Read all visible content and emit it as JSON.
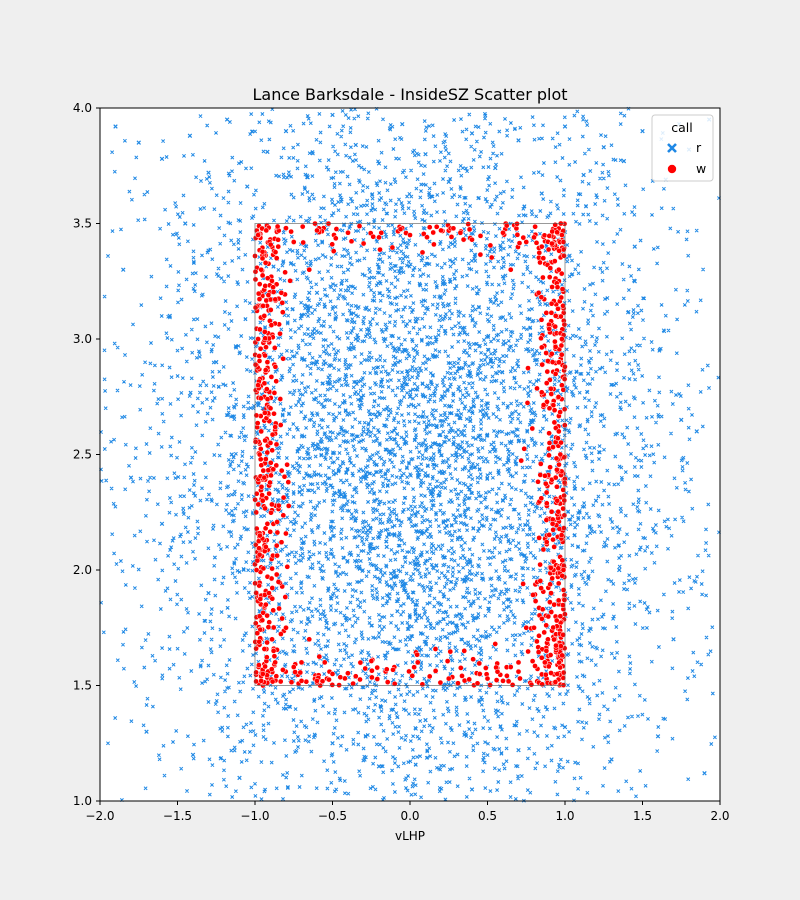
{
  "chart_data": {
    "type": "scatter",
    "title": "Lance Barksdale - InsideSZ Scatter plot",
    "xlabel": "vLHP",
    "ylabel": "",
    "xlim": [
      -2.0,
      2.0
    ],
    "ylim": [
      1.0,
      4.0
    ],
    "xticks": [
      "−2.0",
      "−1.5",
      "−1.0",
      "−0.5",
      "0.0",
      "0.5",
      "1.0",
      "1.5",
      "2.0"
    ],
    "yticks": [
      "1.0",
      "1.5",
      "2.0",
      "2.5",
      "3.0",
      "3.5",
      "4.0"
    ],
    "grid": false,
    "legend": {
      "title": "call",
      "placement": "top-right",
      "entries": [
        {
          "label": "r",
          "marker": "x",
          "color": "#1e88e5"
        },
        {
          "label": "w",
          "marker": "o",
          "color": "#ff0000"
        }
      ]
    },
    "strike_zone": {
      "x": [
        -1.0,
        1.0
      ],
      "y": [
        1.5,
        3.5
      ]
    },
    "series": [
      {
        "name": "r",
        "marker": "x",
        "color": "#1e88e5",
        "x": [
          -1.9,
          -1.75,
          -1.6,
          -1.42,
          -1.3,
          -1.18,
          -1.05,
          -0.92,
          -0.8,
          -0.66,
          -0.5,
          -0.35,
          -0.2,
          -0.05,
          0.1,
          0.25,
          0.4,
          0.55,
          0.7,
          0.85,
          1.0,
          1.12,
          1.25,
          1.38,
          1.5,
          1.65,
          1.8,
          1.93,
          -1.85,
          -1.55,
          -1.25,
          -0.95,
          -0.65,
          -0.35,
          -0.05,
          0.25,
          0.55,
          0.85,
          1.15,
          1.45,
          1.75,
          -1.7,
          -1.4,
          -1.1,
          -0.8,
          -0.5,
          -0.2,
          0.1,
          0.4,
          0.7,
          1.0,
          1.3,
          1.6,
          1.9,
          -0.6,
          -0.3,
          0.0,
          0.3,
          0.6,
          -0.75,
          -0.45,
          -0.15,
          0.15,
          0.45,
          0.75,
          -0.55,
          -0.25,
          0.05,
          0.35,
          0.65,
          -0.7,
          -0.4,
          -0.1,
          0.2,
          0.5,
          -0.6,
          -0.3,
          0.0,
          0.3,
          0.6,
          -1.6,
          -1.3,
          -1.15,
          1.2,
          1.35,
          1.7,
          -1.45,
          1.45,
          -1.8,
          1.85
        ],
        "y": [
          3.92,
          3.85,
          3.78,
          3.88,
          3.72,
          3.95,
          3.66,
          3.81,
          3.9,
          3.7,
          3.97,
          3.84,
          3.76,
          3.93,
          3.8,
          3.68,
          3.89,
          3.74,
          3.86,
          3.63,
          3.92,
          3.71,
          3.83,
          3.77,
          3.9,
          3.69,
          3.82,
          3.95,
          3.3,
          3.1,
          2.9,
          2.7,
          3.2,
          3.0,
          2.8,
          3.15,
          2.95,
          3.05,
          2.85,
          3.25,
          2.65,
          1.3,
          1.2,
          1.1,
          1.4,
          1.25,
          1.15,
          1.35,
          1.05,
          1.22,
          1.32,
          1.18,
          1.28,
          1.12,
          2.9,
          2.6,
          2.75,
          2.5,
          2.3,
          2.2,
          2.45,
          2.1,
          2.35,
          1.9,
          2.05,
          1.8,
          2.65,
          2.25,
          1.95,
          2.55,
          3.1,
          3.3,
          2.15,
          1.85,
          2.7,
          3.2,
          2.4,
          1.7,
          1.65,
          3.35,
          2.2,
          1.9,
          2.5,
          2.3,
          2.0,
          1.7,
          3.5,
          3.4,
          2.4,
          2.6
        ]
      },
      {
        "name": "w",
        "marker": "o",
        "color": "#ff0000",
        "x": [
          -0.98,
          -0.96,
          -0.94,
          -0.92,
          -0.9,
          -0.97,
          -0.95,
          -0.93,
          -0.91,
          -0.89,
          -0.87,
          -0.85,
          -0.83,
          -0.98,
          -0.96,
          -0.94,
          -0.92,
          -0.99,
          -0.97,
          -0.95,
          -0.88,
          -0.86,
          -0.8,
          -0.75,
          -0.7,
          -0.65,
          -0.6,
          -0.98,
          -0.93,
          -0.9,
          0.98,
          0.96,
          0.94,
          0.92,
          0.9,
          0.97,
          0.95,
          0.93,
          0.91,
          0.89,
          0.87,
          0.85,
          0.83,
          0.98,
          0.96,
          0.94,
          0.92,
          0.99,
          0.97,
          0.95,
          0.88,
          0.86,
          0.8,
          0.75,
          0.7,
          0.65,
          0.6,
          0.98,
          0.93,
          0.9,
          -0.8,
          -0.6,
          -0.4,
          -0.2,
          0.0,
          0.2,
          0.4,
          0.6,
          0.8,
          -0.7,
          -0.5,
          0.5,
          0.7,
          -0.75,
          -0.55,
          -0.35,
          -0.15,
          0.05,
          0.25,
          0.45,
          0.65,
          0.85,
          -0.65,
          0.35,
          0.55,
          0.75
        ],
        "y": [
          3.45,
          3.3,
          3.1,
          2.9,
          2.7,
          2.5,
          2.3,
          2.1,
          1.9,
          1.7,
          1.6,
          3.4,
          3.2,
          2.8,
          2.6,
          2.4,
          2.2,
          2.0,
          1.8,
          1.55,
          1.65,
          3.35,
          1.75,
          3.42,
          1.6,
          3.3,
          1.52,
          3.0,
          1.85,
          2.55,
          3.45,
          3.3,
          3.1,
          2.9,
          2.7,
          2.5,
          2.3,
          2.1,
          1.9,
          1.7,
          1.6,
          3.4,
          3.2,
          2.8,
          2.6,
          2.4,
          2.2,
          2.0,
          1.8,
          1.55,
          1.65,
          3.35,
          1.75,
          3.42,
          1.6,
          3.3,
          1.52,
          3.0,
          1.85,
          2.55,
          3.48,
          3.47,
          3.46,
          3.44,
          3.45,
          3.47,
          3.43,
          3.46,
          3.44,
          1.52,
          1.55,
          1.53,
          1.56,
          1.58,
          1.6,
          1.54,
          1.57,
          1.6,
          1.53,
          1.55,
          1.58,
          1.62,
          1.7,
          1.65,
          1.68,
          1.75
        ]
      }
    ]
  }
}
